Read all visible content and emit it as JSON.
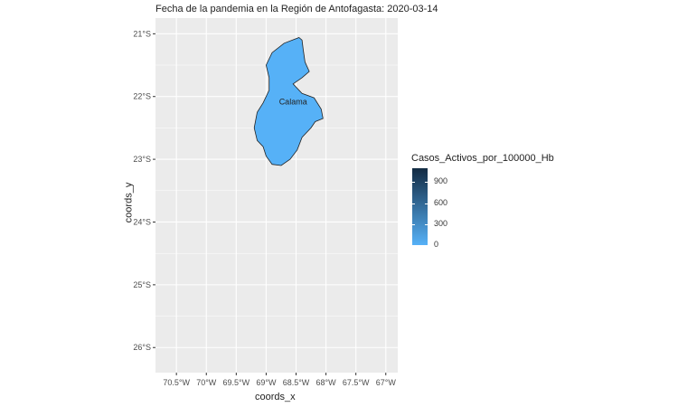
{
  "title": "Fecha de la pandemia en la Región de Antofagasta: 2020-03-14",
  "axes": {
    "x_title": "coords_x",
    "y_title": "coords_y",
    "x_ticks": [
      "70.5°W",
      "70°W",
      "69.5°W",
      "69°W",
      "68.5°W",
      "68°W",
      "67.5°W",
      "67°W"
    ],
    "x_values": [
      -70.5,
      -70.0,
      -69.5,
      -69.0,
      -68.5,
      -68.0,
      -67.5,
      -67.0
    ],
    "y_ticks": [
      "21°S",
      "22°S",
      "23°S",
      "24°S",
      "25°S",
      "26°S"
    ],
    "y_values": [
      -21,
      -22,
      -23,
      -24,
      -25,
      -26
    ],
    "xlim": [
      -70.85,
      -66.8
    ],
    "ylim": [
      -26.4,
      -20.75
    ]
  },
  "panel_color": "#ebebeb",
  "grid_color": "#ffffff",
  "region": {
    "label": "Calama",
    "label_lon": -68.55,
    "label_lat": -22.08,
    "fill": "#56b1f7",
    "stroke": "#222222",
    "value": 0,
    "outline": [
      [
        -68.45,
        -21.06
      ],
      [
        -68.4,
        -21.1
      ],
      [
        -68.38,
        -21.25
      ],
      [
        -68.35,
        -21.45
      ],
      [
        -68.28,
        -21.6
      ],
      [
        -68.4,
        -21.7
      ],
      [
        -68.55,
        -21.8
      ],
      [
        -68.4,
        -21.95
      ],
      [
        -68.2,
        -22.02
      ],
      [
        -68.08,
        -22.2
      ],
      [
        -68.05,
        -22.35
      ],
      [
        -68.18,
        -22.4
      ],
      [
        -68.25,
        -22.5
      ],
      [
        -68.4,
        -22.65
      ],
      [
        -68.48,
        -22.85
      ],
      [
        -68.6,
        -23.0
      ],
      [
        -68.75,
        -23.1
      ],
      [
        -68.9,
        -23.08
      ],
      [
        -69.0,
        -22.95
      ],
      [
        -69.05,
        -22.8
      ],
      [
        -69.15,
        -22.7
      ],
      [
        -69.2,
        -22.5
      ],
      [
        -69.15,
        -22.25
      ],
      [
        -69.05,
        -22.1
      ],
      [
        -68.95,
        -21.9
      ],
      [
        -68.95,
        -21.7
      ],
      [
        -69.0,
        -21.5
      ],
      [
        -68.9,
        -21.3
      ],
      [
        -68.7,
        -21.15
      ]
    ]
  },
  "legend": {
    "title": "Casos_Activos_por_100000_Hb",
    "labels": [
      "900",
      "600",
      "300",
      "0"
    ],
    "values": [
      900,
      600,
      300,
      0
    ],
    "range": [
      0,
      1100
    ],
    "low_color": "#56b1f7",
    "high_color": "#132b43"
  }
}
